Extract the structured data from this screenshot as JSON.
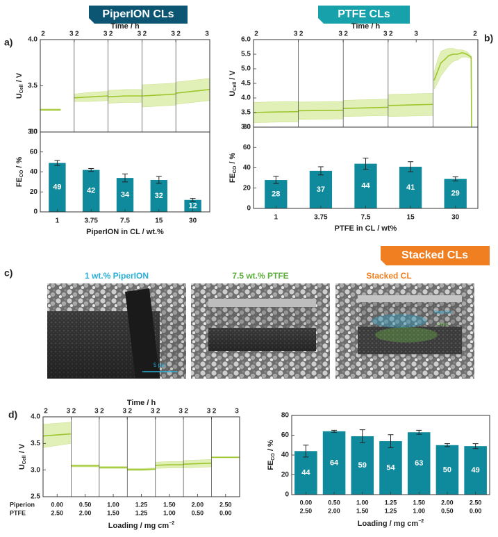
{
  "banners": [
    "PiperION CLs",
    "PTFE CLs",
    "Stacked CLs"
  ],
  "panel_labels": [
    "a)",
    "b)",
    "c)",
    "d)"
  ],
  "images": [
    {
      "caption": "1 wt.%  PiperION"
    },
    {
      "caption": "7.5 wt.%  PTFE"
    },
    {
      "caption": "Stacked CL"
    }
  ],
  "scale_bar": "5 µm",
  "layer_labels": [
    "PiperION",
    "PTFE"
  ],
  "chart_data": [
    {
      "type": "segmented-line",
      "xlabel": "Time / h",
      "ylabel": [
        "U",
        "Cell",
        " / V"
      ],
      "color": "#9dc52c",
      "band_color": "#d9eca4",
      "ylim": [
        3,
        4
      ],
      "yticks": [
        {
          "value": 3,
          "label": "3.0"
        },
        3.5,
        {
          "value": 4,
          "label": "4.0"
        }
      ],
      "segments": [
        {
          "xlim": [
            2,
            3
          ],
          "xticks": [
            2,
            3
          ],
          "x": [
            2,
            2.3,
            2.6
          ],
          "values": [
            3.24,
            3.24,
            3.24
          ],
          "lower": [
            3.23,
            3.23,
            3.23
          ],
          "upper": [
            3.25,
            3.25,
            3.25
          ]
        },
        {
          "xlim": [
            2,
            3
          ],
          "xticks": [
            2,
            3
          ],
          "x": [
            2,
            2.5,
            3
          ],
          "values": [
            3.37,
            3.38,
            3.39
          ],
          "lower": [
            3.33,
            3.33,
            3.34
          ],
          "upper": [
            3.41,
            3.43,
            3.44
          ]
        },
        {
          "xlim": [
            2,
            3
          ],
          "xticks": [
            2,
            3
          ],
          "x": [
            2,
            2.5,
            3
          ],
          "values": [
            3.38,
            3.39,
            3.39
          ],
          "lower": [
            3.31,
            3.32,
            3.32
          ],
          "upper": [
            3.45,
            3.46,
            3.46
          ]
        },
        {
          "xlim": [
            2,
            3
          ],
          "xticks": [
            2,
            3
          ],
          "x": [
            2,
            2.5,
            3
          ],
          "values": [
            3.39,
            3.4,
            3.41
          ],
          "lower": [
            3.27,
            3.28,
            3.29
          ],
          "upper": [
            3.51,
            3.52,
            3.53
          ]
        },
        {
          "xlim": [
            2,
            3
          ],
          "xticks": [
            2,
            3
          ],
          "x": [
            2,
            2.5,
            3
          ],
          "values": [
            3.42,
            3.44,
            3.46
          ],
          "lower": [
            3.3,
            3.32,
            3.34
          ],
          "upper": [
            3.54,
            3.56,
            3.58
          ]
        }
      ]
    },
    {
      "type": "bar",
      "ylabel": [
        "FE",
        "CO",
        " / %"
      ],
      "xlabel": "PiperION in CL / wt.%",
      "color": "#0f8a9c",
      "categories": [
        "1",
        "3.75",
        "7.5",
        "15",
        "30"
      ],
      "values": [
        49,
        42,
        34,
        32,
        12
      ],
      "errors": [
        2.5,
        1.5,
        4,
        3.5,
        1.5
      ],
      "ylim": [
        0,
        80
      ],
      "yticks": [
        0,
        20,
        40,
        60,
        80
      ]
    },
    {
      "type": "segmented-line",
      "xlabel": "Time / h",
      "ylabel": [
        "U",
        "Cell",
        " / V"
      ],
      "color": "#9dc52c",
      "band_color": "#d9eca4",
      "ylim": [
        3,
        6
      ],
      "yticks": [
        {
          "value": 3,
          "label": "3.0"
        },
        3.5,
        {
          "value": 4,
          "label": "4.0"
        },
        4.5,
        {
          "value": 5,
          "label": "5.0"
        },
        5.5,
        {
          "value": 6,
          "label": "6.0"
        }
      ],
      "segments": [
        {
          "xlim": [
            2,
            3
          ],
          "xticks": [
            2,
            3
          ],
          "x": [
            2,
            2.5,
            3
          ],
          "values": [
            3.5,
            3.52,
            3.53
          ],
          "lower": [
            3.15,
            3.17,
            3.18
          ],
          "upper": [
            3.85,
            3.87,
            3.88
          ]
        },
        {
          "xlim": [
            2,
            3
          ],
          "xticks": [
            2,
            3
          ],
          "x": [
            2,
            2.5,
            3
          ],
          "values": [
            3.56,
            3.57,
            3.58
          ],
          "lower": [
            3.26,
            3.27,
            3.28
          ],
          "upper": [
            3.86,
            3.87,
            3.88
          ]
        },
        {
          "xlim": [
            2,
            3
          ],
          "xticks": [
            2,
            3
          ],
          "x": [
            2,
            2.5,
            3
          ],
          "values": [
            3.64,
            3.66,
            3.68
          ],
          "lower": [
            3.36,
            3.38,
            3.4
          ],
          "upper": [
            3.92,
            3.94,
            3.96
          ]
        },
        {
          "xlim": [
            2,
            3.6
          ],
          "xticks": [
            2,
            3
          ],
          "x": [
            2,
            2.8,
            3.6
          ],
          "values": [
            3.74,
            3.76,
            3.78
          ],
          "lower": [
            3.36,
            3.38,
            3.4
          ],
          "upper": [
            4.12,
            4.14,
            4.16
          ]
        },
        {
          "xlim": [
            0,
            2
          ],
          "xticks": [
            2
          ],
          "x": [
            0.05,
            0.2,
            0.35,
            0.5,
            0.7,
            0.9,
            1.1,
            1.3,
            1.5,
            1.7,
            1.72
          ],
          "values": [
            4.6,
            4.9,
            5.2,
            5.3,
            5.45,
            5.5,
            5.5,
            5.55,
            5.5,
            5.4,
            3.0
          ],
          "lower": [
            4.3,
            4.5,
            4.75,
            4.9,
            5.1,
            5.25,
            5.3,
            5.4,
            5.4,
            5.35,
            3.0
          ],
          "upper": [
            4.9,
            5.3,
            5.6,
            5.65,
            5.7,
            5.7,
            5.65,
            5.65,
            5.6,
            5.45,
            3.0
          ]
        }
      ]
    },
    {
      "type": "bar",
      "ylabel": [
        "FE",
        "CO",
        " / %"
      ],
      "xlabel": "PTFE in CL / wt%",
      "color": "#0f8a9c",
      "categories": [
        "1",
        "3.75",
        "7.5",
        "15",
        "30"
      ],
      "values": [
        28,
        37,
        44,
        41,
        29
      ],
      "errors": [
        3.5,
        4,
        5.5,
        5,
        2
      ],
      "ylim": [
        0,
        80
      ],
      "yticks": [
        0,
        20,
        40,
        60,
        80
      ]
    },
    {
      "type": "segmented-line",
      "xlabel": "Time / h",
      "ylabel": [
        "U",
        "Cell",
        " / V"
      ],
      "color": "#9dc52c",
      "band_color": "#d9eca4",
      "ylim": [
        2.5,
        4
      ],
      "yticks": [
        2.5,
        {
          "value": 3,
          "label": "3.0"
        },
        3.5,
        {
          "value": 4,
          "label": "4.0"
        }
      ],
      "category_rows": [
        "Piperion",
        "PTFE"
      ],
      "categories_label": [
        "Loading / mg cm",
        "−2"
      ],
      "categories": [
        [
          "0.00",
          "2.50"
        ],
        [
          "0.50",
          "2.00"
        ],
        [
          "1.00",
          "1.50"
        ],
        [
          "1.25",
          "1.25"
        ],
        [
          "1.50",
          "1.00"
        ],
        [
          "2.00",
          "0.50"
        ],
        [
          "2.50",
          "0.00"
        ]
      ],
      "segments": [
        {
          "xlim": [
            2,
            3
          ],
          "xticks": [
            2,
            3
          ],
          "x": [
            2,
            2.5,
            3
          ],
          "values": [
            3.64,
            3.66,
            3.68
          ],
          "lower": [
            3.42,
            3.46,
            3.5
          ],
          "upper": [
            3.86,
            3.88,
            3.9
          ]
        },
        {
          "xlim": [
            2,
            3
          ],
          "xticks": [
            2,
            3
          ],
          "x": [
            2,
            2.5,
            3
          ],
          "values": [
            3.08,
            3.08,
            3.08
          ],
          "lower": [
            3.06,
            3.06,
            3.06
          ],
          "upper": [
            3.1,
            3.1,
            3.1
          ]
        },
        {
          "xlim": [
            2,
            3
          ],
          "xticks": [
            2,
            3
          ],
          "x": [
            2,
            2.5,
            3
          ],
          "values": [
            3.05,
            3.05,
            3.05
          ],
          "lower": [
            3.03,
            3.03,
            3.03
          ],
          "upper": [
            3.07,
            3.07,
            3.07
          ]
        },
        {
          "xlim": [
            2,
            3
          ],
          "xticks": [
            2,
            3
          ],
          "x": [
            2,
            2.5,
            3
          ],
          "values": [
            3.01,
            3.01,
            3.02
          ],
          "lower": [
            2.99,
            2.99,
            3.0
          ],
          "upper": [
            3.03,
            3.03,
            3.04
          ]
        },
        {
          "xlim": [
            2,
            3
          ],
          "xticks": [
            2,
            3
          ],
          "x": [
            2,
            2.5,
            3
          ],
          "values": [
            3.09,
            3.1,
            3.1
          ],
          "lower": [
            3.03,
            3.04,
            3.04
          ],
          "upper": [
            3.15,
            3.16,
            3.16
          ]
        },
        {
          "xlim": [
            2,
            3
          ],
          "xticks": [
            2,
            3
          ],
          "x": [
            2,
            2.5,
            3
          ],
          "values": [
            3.11,
            3.12,
            3.13
          ],
          "lower": [
            3.04,
            3.05,
            3.06
          ],
          "upper": [
            3.18,
            3.19,
            3.2
          ]
        },
        {
          "xlim": [
            2,
            3
          ],
          "xticks": [
            2,
            3
          ],
          "x": [
            2,
            2.5,
            3
          ],
          "values": [
            3.24,
            3.24,
            3.24
          ],
          "lower": [
            3.23,
            3.23,
            3.23
          ],
          "upper": [
            3.25,
            3.25,
            3.25
          ]
        }
      ]
    },
    {
      "type": "bar",
      "ylabel": [
        "FE",
        "CO",
        " / %"
      ],
      "color": "#0f8a9c",
      "categories_label": [
        "Loading / mg cm",
        "−2"
      ],
      "categories": [
        [
          "0.00",
          "2.50"
        ],
        [
          "0.50",
          "2.00"
        ],
        [
          "1.00",
          "1.50"
        ],
        [
          "1.25",
          "1.25"
        ],
        [
          "1.50",
          "1.00"
        ],
        [
          "2.00",
          "0.50"
        ],
        [
          "2.50",
          "0.00"
        ]
      ],
      "values": [
        44,
        64,
        59,
        54,
        63,
        50,
        49
      ],
      "errors": [
        6,
        1,
        6.5,
        6.5,
        2,
        1.5,
        2.5
      ],
      "ylim": [
        0,
        80
      ],
      "yticks": [
        0,
        20,
        40,
        60,
        80
      ]
    }
  ]
}
